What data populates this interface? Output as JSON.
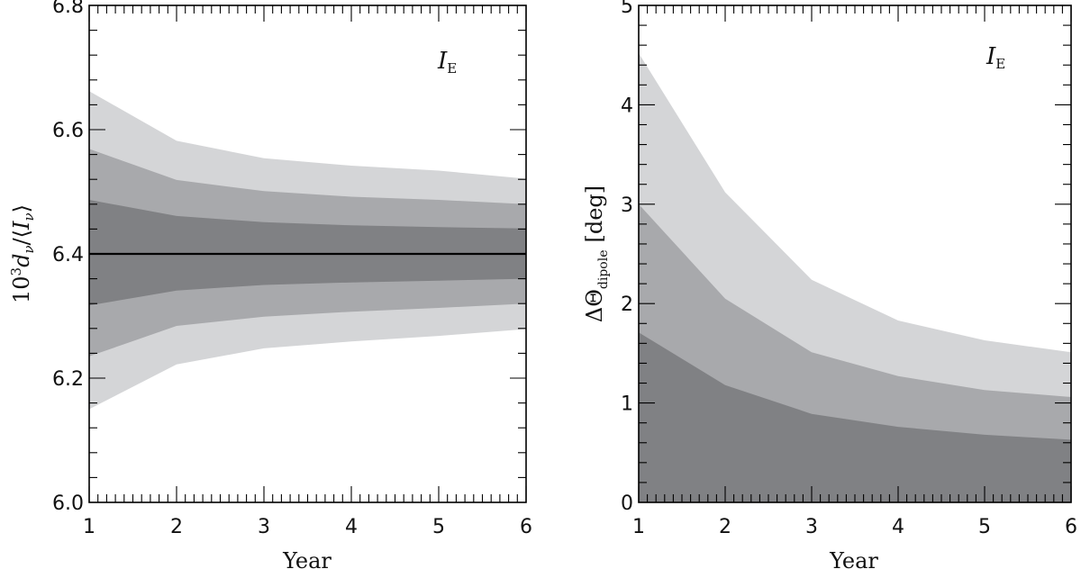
{
  "colors": {
    "band_outer": "#d4d5d7",
    "band_middle": "#a8a9ac",
    "band_inner": "#808184",
    "line": "#000000"
  },
  "chart_data": [
    {
      "type": "area",
      "x": [
        1,
        2,
        3,
        4,
        5,
        6
      ],
      "xlim": [
        1,
        6
      ],
      "ylim": [
        6.0,
        6.8
      ],
      "xlabel": "Year",
      "ylabel": "10³d_ν/⟨I_ν⟩",
      "ylabel_parts": {
        "coef": "10",
        "exp": "3",
        "var": "d",
        "sub": "ν",
        "slash": "/",
        "lang": "⟨",
        "var2": "I",
        "sub2": "ν",
        "rang": "⟩"
      },
      "xticks": [
        "1",
        "2",
        "3",
        "4",
        "5",
        "6"
      ],
      "yticks": [
        "6.0",
        "6.2",
        "6.4",
        "6.6",
        "6.8"
      ],
      "annotation": {
        "main": "I",
        "sub": "E"
      },
      "center_line": 6.4,
      "grid": false,
      "bands": [
        {
          "level": "outer",
          "upper": [
            6.662,
            6.582,
            6.554,
            6.542,
            6.534,
            6.521
          ],
          "lower": [
            6.15,
            6.222,
            6.248,
            6.259,
            6.268,
            6.279
          ]
        },
        {
          "level": "middle",
          "upper": [
            6.569,
            6.519,
            6.501,
            6.492,
            6.487,
            6.48
          ],
          "lower": [
            6.235,
            6.284,
            6.299,
            6.307,
            6.313,
            6.32
          ]
        },
        {
          "level": "inner",
          "upper": [
            6.487,
            6.461,
            6.451,
            6.446,
            6.443,
            6.441
          ],
          "lower": [
            6.317,
            6.341,
            6.35,
            6.354,
            6.357,
            6.36
          ]
        }
      ]
    },
    {
      "type": "area",
      "x": [
        1,
        2,
        3,
        4,
        5,
        6
      ],
      "xlim": [
        1,
        6
      ],
      "ylim": [
        0,
        5
      ],
      "xlabel": "Year",
      "ylabel": "ΔΘ_dipole [deg]",
      "ylabel_parts": {
        "main": "ΔΘ",
        "sub": "dipole",
        "unit": "[deg]"
      },
      "xticks": [
        "1",
        "2",
        "3",
        "4",
        "5",
        "6"
      ],
      "yticks": [
        "0",
        "1",
        "2",
        "3",
        "4",
        "5"
      ],
      "annotation": {
        "main": "I",
        "sub": "E"
      },
      "grid": false,
      "bands": [
        {
          "level": "outer",
          "upper": [
            4.52,
            3.12,
            2.24,
            1.83,
            1.63,
            1.51
          ],
          "lower": [
            0,
            0,
            0,
            0,
            0,
            0
          ]
        },
        {
          "level": "middle",
          "upper": [
            3.0,
            2.05,
            1.51,
            1.27,
            1.13,
            1.06
          ],
          "lower": [
            0,
            0,
            0,
            0,
            0,
            0
          ]
        },
        {
          "level": "inner",
          "upper": [
            1.71,
            1.18,
            0.89,
            0.76,
            0.68,
            0.63
          ],
          "lower": [
            0,
            0,
            0,
            0,
            0,
            0
          ]
        }
      ]
    }
  ]
}
